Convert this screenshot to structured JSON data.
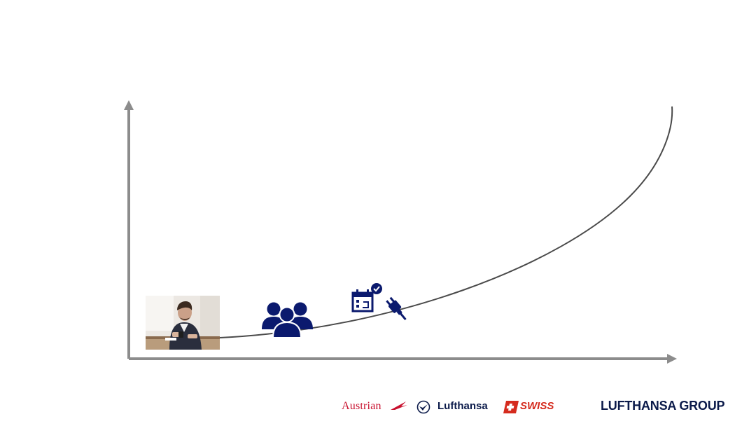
{
  "colors": {
    "axis": "#8c8c8c",
    "curve": "#4a4a4a",
    "icon": "#0b1a6e",
    "austrian_red": "#c8102e",
    "swiss_red": "#d52b1e",
    "lufthansa_navy": "#0b1a4a"
  },
  "icons": {
    "people": "group-of-people-icon",
    "calendar": "calendar-check-icon",
    "plug": "plug-icon"
  },
  "photo": {
    "subject": "man-with-phone-photo"
  },
  "logos": {
    "austrian": "Austrian",
    "lufthansa": "Lufthansa",
    "swiss": "SWISS",
    "group": "LUFTHANSA GROUP"
  }
}
